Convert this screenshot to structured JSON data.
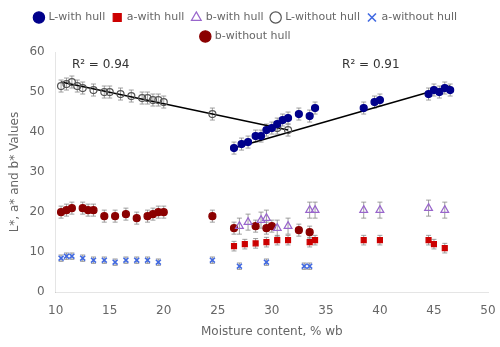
{
  "chart_data": {
    "type": "scatter",
    "xlabel": "Moisture content, % wb",
    "ylabel": "L*, a* and b* Values",
    "xlim": [
      10,
      50
    ],
    "ylim": [
      0,
      60
    ],
    "xticks": [
      10,
      15,
      20,
      25,
      30,
      35,
      40,
      45,
      50
    ],
    "yticks": [
      0,
      10,
      20,
      30,
      40,
      50,
      60
    ],
    "grid": false,
    "legend": "top",
    "series": [
      {
        "name": "L-with hull",
        "color": "#00008B",
        "marker": "circle",
        "x": [
          26.5,
          27.2,
          27.8,
          28.5,
          29.0,
          29.5,
          30.0,
          30.5,
          31.0,
          31.5,
          32.5,
          33.5,
          34.0,
          38.5,
          39.5,
          40.0,
          44.5,
          45.0,
          45.5,
          46.0,
          46.5
        ],
        "values": [
          36.0,
          37.0,
          37.5,
          39.0,
          39.0,
          40.5,
          41.0,
          42.0,
          43.0,
          43.5,
          44.5,
          44.0,
          46.0,
          46.0,
          47.5,
          48.0,
          49.5,
          50.5,
          50.0,
          51.0,
          50.5
        ],
        "errors": [
          1.5,
          1.5,
          1.5,
          1.5,
          1.5,
          1.5,
          1.5,
          1.5,
          1.5,
          1.5,
          1.5,
          1.5,
          1.5,
          1.5,
          1.5,
          1.5,
          1.5,
          1.5,
          1.5,
          1.5,
          1.5
        ]
      },
      {
        "name": "a-with hull",
        "color": "#CC0000",
        "marker": "square",
        "x": [
          26.5,
          27.5,
          28.5,
          29.5,
          30.5,
          31.5,
          33.5,
          34.0,
          38.5,
          40.0,
          44.5,
          45.0,
          46.0
        ],
        "values": [
          11.5,
          12.0,
          12.2,
          12.5,
          13.0,
          13.0,
          12.5,
          13.0,
          13.0,
          13.0,
          13.0,
          12.0,
          11.0
        ],
        "errors": [
          1.2,
          1.2,
          1.2,
          1.2,
          1.2,
          1.2,
          1.2,
          1.2,
          1.2,
          1.2,
          1.2,
          1.2,
          1.2
        ]
      },
      {
        "name": "b-with hull",
        "color": "#9966CC",
        "marker": "triangle_open",
        "x": [
          27.0,
          27.8,
          29.0,
          29.5,
          30.5,
          31.5,
          33.5,
          34.0,
          38.5,
          40.0,
          44.5,
          46.0
        ],
        "values": [
          16.5,
          17.5,
          18.0,
          18.5,
          16.0,
          16.5,
          20.5,
          20.5,
          20.5,
          20.5,
          21.0,
          20.5
        ],
        "errors": [
          2.0,
          2.0,
          2.0,
          2.0,
          2.0,
          2.0,
          2.0,
          2.0,
          2.0,
          2.0,
          2.0,
          2.0
        ]
      },
      {
        "name": "L-without hull",
        "color": "#555555",
        "marker": "circle_open",
        "x": [
          10.5,
          11.0,
          11.5,
          12.0,
          12.5,
          13.5,
          14.5,
          15.0,
          16.0,
          17.0,
          18.0,
          18.5,
          19.0,
          19.5,
          20.0,
          24.5,
          30.5,
          31.5
        ],
        "values": [
          51.5,
          52.0,
          52.5,
          51.5,
          51.0,
          50.5,
          50.0,
          50.0,
          49.5,
          49.0,
          48.5,
          48.5,
          48.0,
          48.0,
          47.5,
          44.5,
          41.0,
          40.5
        ],
        "errors": [
          1.5,
          1.5,
          1.5,
          1.5,
          1.5,
          1.5,
          1.5,
          1.5,
          1.5,
          1.5,
          1.5,
          1.5,
          1.5,
          1.5,
          1.5,
          1.5,
          1.5,
          1.5
        ]
      },
      {
        "name": "a-without hull",
        "color": "#4169E1",
        "marker": "x",
        "x": [
          10.5,
          11.0,
          11.5,
          12.5,
          13.5,
          14.5,
          15.5,
          16.5,
          17.5,
          18.5,
          19.5,
          24.5,
          27.0,
          29.5,
          33.0,
          33.5
        ],
        "values": [
          8.5,
          9.0,
          9.0,
          8.5,
          8.0,
          8.0,
          7.5,
          8.0,
          8.0,
          8.0,
          7.5,
          8.0,
          6.5,
          7.5,
          6.5,
          6.5
        ],
        "errors": [
          0.8,
          0.8,
          0.8,
          0.8,
          0.8,
          0.8,
          0.8,
          0.8,
          0.8,
          0.8,
          0.8,
          0.8,
          0.8,
          0.8,
          0.8,
          0.8
        ]
      },
      {
        "name": "b-without hull",
        "color": "#8B0000",
        "marker": "circle",
        "x": [
          10.5,
          11.0,
          11.5,
          12.5,
          13.0,
          13.5,
          14.5,
          15.5,
          16.5,
          17.5,
          18.5,
          19.0,
          19.5,
          20.0,
          24.5,
          26.5,
          28.5,
          29.5,
          30.0,
          32.5,
          33.5
        ],
        "values": [
          20.0,
          20.5,
          21.0,
          21.0,
          20.5,
          20.5,
          19.0,
          19.0,
          19.5,
          18.5,
          19.0,
          19.5,
          20.0,
          20.0,
          19.0,
          16.0,
          16.5,
          16.0,
          16.5,
          15.5,
          15.0
        ],
        "errors": [
          1.5,
          1.5,
          1.5,
          1.5,
          1.5,
          1.5,
          1.5,
          1.5,
          1.5,
          1.5,
          1.5,
          1.5,
          1.5,
          1.5,
          1.5,
          1.5,
          1.5,
          1.5,
          1.5,
          1.5,
          1.5
        ]
      },
      {
        "type": "line",
        "color": "#000000",
        "line_style": "solid",
        "x": [
          10.5,
          31.5
        ],
        "values": [
          52.5,
          40.5
        ]
      },
      {
        "type": "line",
        "color": "#000000",
        "line_style": "solid",
        "x": [
          26.5,
          46.5
        ],
        "values": [
          36.0,
          51.5
        ]
      }
    ],
    "annotations": [
      {
        "x": 11.5,
        "y": 56.0,
        "text": "R² = 0.94"
      },
      {
        "x": 36.5,
        "y": 56.0,
        "text": "R² = 0.91"
      }
    ]
  }
}
